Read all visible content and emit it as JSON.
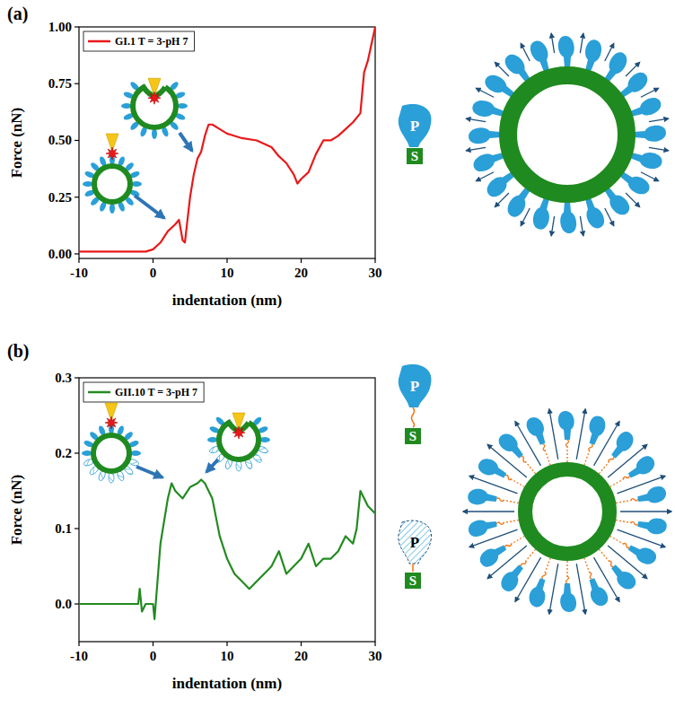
{
  "panel_labels": [
    "(a)",
    "(b)"
  ],
  "chart_data": [
    {
      "type": "line",
      "xlabel": "indentation (nm)",
      "ylabel": "Force (nN)",
      "x": [
        -10,
        -5,
        -1,
        0,
        1,
        2,
        3,
        3.5,
        4,
        4.3,
        5,
        5.5,
        6,
        6.5,
        7,
        7.5,
        8,
        9,
        10,
        12,
        14,
        16,
        17,
        18,
        19,
        19.5,
        20,
        21,
        22,
        23,
        24,
        25,
        26,
        27,
        28,
        28.5,
        29,
        30
      ],
      "series": [
        {
          "name": "GI.1 T = 3-pH 7",
          "color": "#e8191b",
          "values": [
            0.01,
            0.01,
            0.01,
            0.02,
            0.05,
            0.1,
            0.13,
            0.15,
            0.06,
            0.05,
            0.25,
            0.35,
            0.42,
            0.45,
            0.52,
            0.57,
            0.57,
            0.55,
            0.53,
            0.51,
            0.5,
            0.47,
            0.43,
            0.4,
            0.35,
            0.31,
            0.33,
            0.36,
            0.44,
            0.5,
            0.5,
            0.52,
            0.55,
            0.58,
            0.62,
            0.8,
            0.85,
            1.0
          ]
        }
      ],
      "xlim": [
        -10,
        30
      ],
      "ylim": [
        -0.02,
        1.0
      ],
      "xticks": [
        -10,
        0,
        10,
        20,
        30
      ],
      "yticks": [
        {
          "value": 0,
          "label": "0.00"
        },
        {
          "value": 0.25,
          "label": "0.25"
        },
        {
          "value": 0.5,
          "label": "0.50"
        },
        {
          "value": 0.75,
          "label": "0.75"
        },
        {
          "value": 1.0,
          "label": "1.00"
        }
      ],
      "legend": "upper left"
    },
    {
      "type": "line",
      "xlabel": "indentation (nm)",
      "ylabel": "Force (nN)",
      "x": [
        -10,
        -5,
        -2,
        -1.8,
        -1.5,
        -1,
        0,
        0.2,
        1,
        2,
        2.5,
        3,
        4,
        5,
        6,
        6.5,
        7,
        8,
        9,
        10,
        11,
        12,
        13,
        14,
        15,
        16,
        17,
        18,
        19,
        20,
        21,
        22,
        23,
        24,
        25,
        26,
        27,
        27.5,
        28,
        29,
        30
      ],
      "series": [
        {
          "name": "GII.10 T = 3-pH 7",
          "color": "#238b21",
          "values": [
            0,
            0,
            0,
            0.02,
            -0.01,
            0,
            0,
            -0.02,
            0.08,
            0.14,
            0.16,
            0.15,
            0.14,
            0.155,
            0.16,
            0.165,
            0.16,
            0.14,
            0.09,
            0.06,
            0.04,
            0.03,
            0.02,
            0.03,
            0.04,
            0.05,
            0.07,
            0.04,
            0.05,
            0.06,
            0.08,
            0.05,
            0.06,
            0.06,
            0.07,
            0.09,
            0.08,
            0.1,
            0.15,
            0.13,
            0.12
          ]
        }
      ],
      "xlim": [
        -10,
        30
      ],
      "ylim": [
        -0.05,
        0.3
      ],
      "xticks": [
        -10,
        0,
        10,
        20,
        30
      ],
      "yticks": [
        {
          "value": 0,
          "label": "0.0"
        },
        0.1,
        0.2,
        0.3
      ],
      "legend": "upper left"
    }
  ],
  "schematics": [
    {
      "labels": [
        "P",
        "S"
      ]
    },
    {
      "labels": [
        "P",
        "S",
        "P",
        "S"
      ]
    }
  ]
}
